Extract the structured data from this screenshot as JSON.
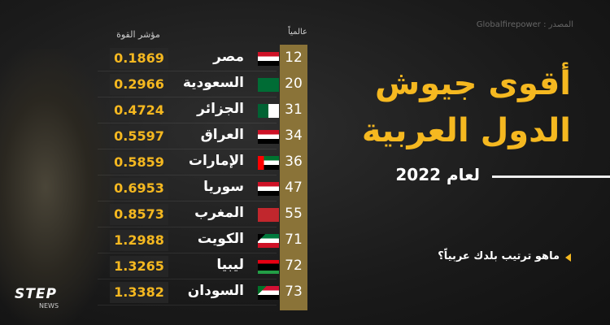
{
  "source": "المصدر : Globalfirepower",
  "title_line1": "أقوى جيوش",
  "title_line2": "الدول العربية",
  "year_label": "لعام 2022",
  "question": "ماهو ترتيب بلدك عربياً؟",
  "logo": {
    "name": "STEP",
    "sub": "NEWS"
  },
  "colors": {
    "accent": "#f5b820",
    "rank_bar": "#8a7338"
  },
  "chart_data": {
    "type": "table",
    "columns": [
      "عالمياً",
      "",
      "مؤشر القوة"
    ],
    "rows": [
      {
        "rank": "12",
        "country": "مصر",
        "flag": "egypt",
        "index": "0.1869"
      },
      {
        "rank": "20",
        "country": "السعودية",
        "flag": "saudi",
        "index": "0.2966"
      },
      {
        "rank": "31",
        "country": "الجزائر",
        "flag": "algeria",
        "index": "0.4724"
      },
      {
        "rank": "34",
        "country": "العراق",
        "flag": "iraq",
        "index": "0.5597"
      },
      {
        "rank": "36",
        "country": "الإمارات",
        "flag": "uae",
        "index": "0.5859"
      },
      {
        "rank": "47",
        "country": "سوريا",
        "flag": "syria",
        "index": "0.6953"
      },
      {
        "rank": "55",
        "country": "المغرب",
        "flag": "morocco",
        "index": "0.8573"
      },
      {
        "rank": "71",
        "country": "الكويت",
        "flag": "kuwait",
        "index": "1.2988"
      },
      {
        "rank": "72",
        "country": "ليبيا",
        "flag": "libya",
        "index": "1.3265"
      },
      {
        "rank": "73",
        "country": "السودان",
        "flag": "sudan",
        "index": "1.3382"
      }
    ]
  }
}
